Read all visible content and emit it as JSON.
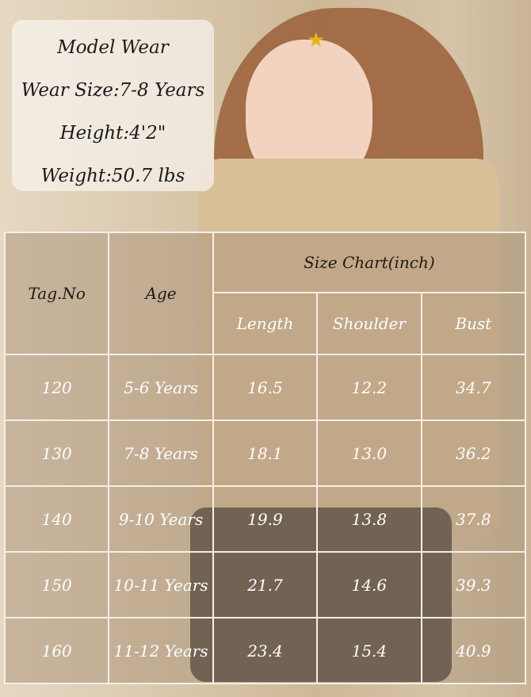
{
  "model_info": {
    "title": "Model Wear",
    "wear_size": "Wear Size:7-8 Years",
    "height": "Height:4'2\"",
    "weight": "Weight:50.7 lbs"
  },
  "table": {
    "headers": {
      "tag": "Tag.No",
      "age": "Age",
      "group": "Size Chart(inch)",
      "length": "Length",
      "shoulder": "Shoulder",
      "bust": "Bust"
    },
    "rows": [
      [
        "120",
        "5-6 Years",
        "16.5",
        "12.2",
        "34.7"
      ],
      [
        "130",
        "7-8 Years",
        "18.1",
        "13.0",
        "36.2"
      ],
      [
        "140",
        "9-10 Years",
        "19.9",
        "13.8",
        "37.8"
      ],
      [
        "150",
        "10-11 Years",
        "21.7",
        "14.6",
        "39.3"
      ],
      [
        "160",
        "11-12 Years",
        "23.4",
        "15.4",
        "40.9"
      ]
    ]
  }
}
